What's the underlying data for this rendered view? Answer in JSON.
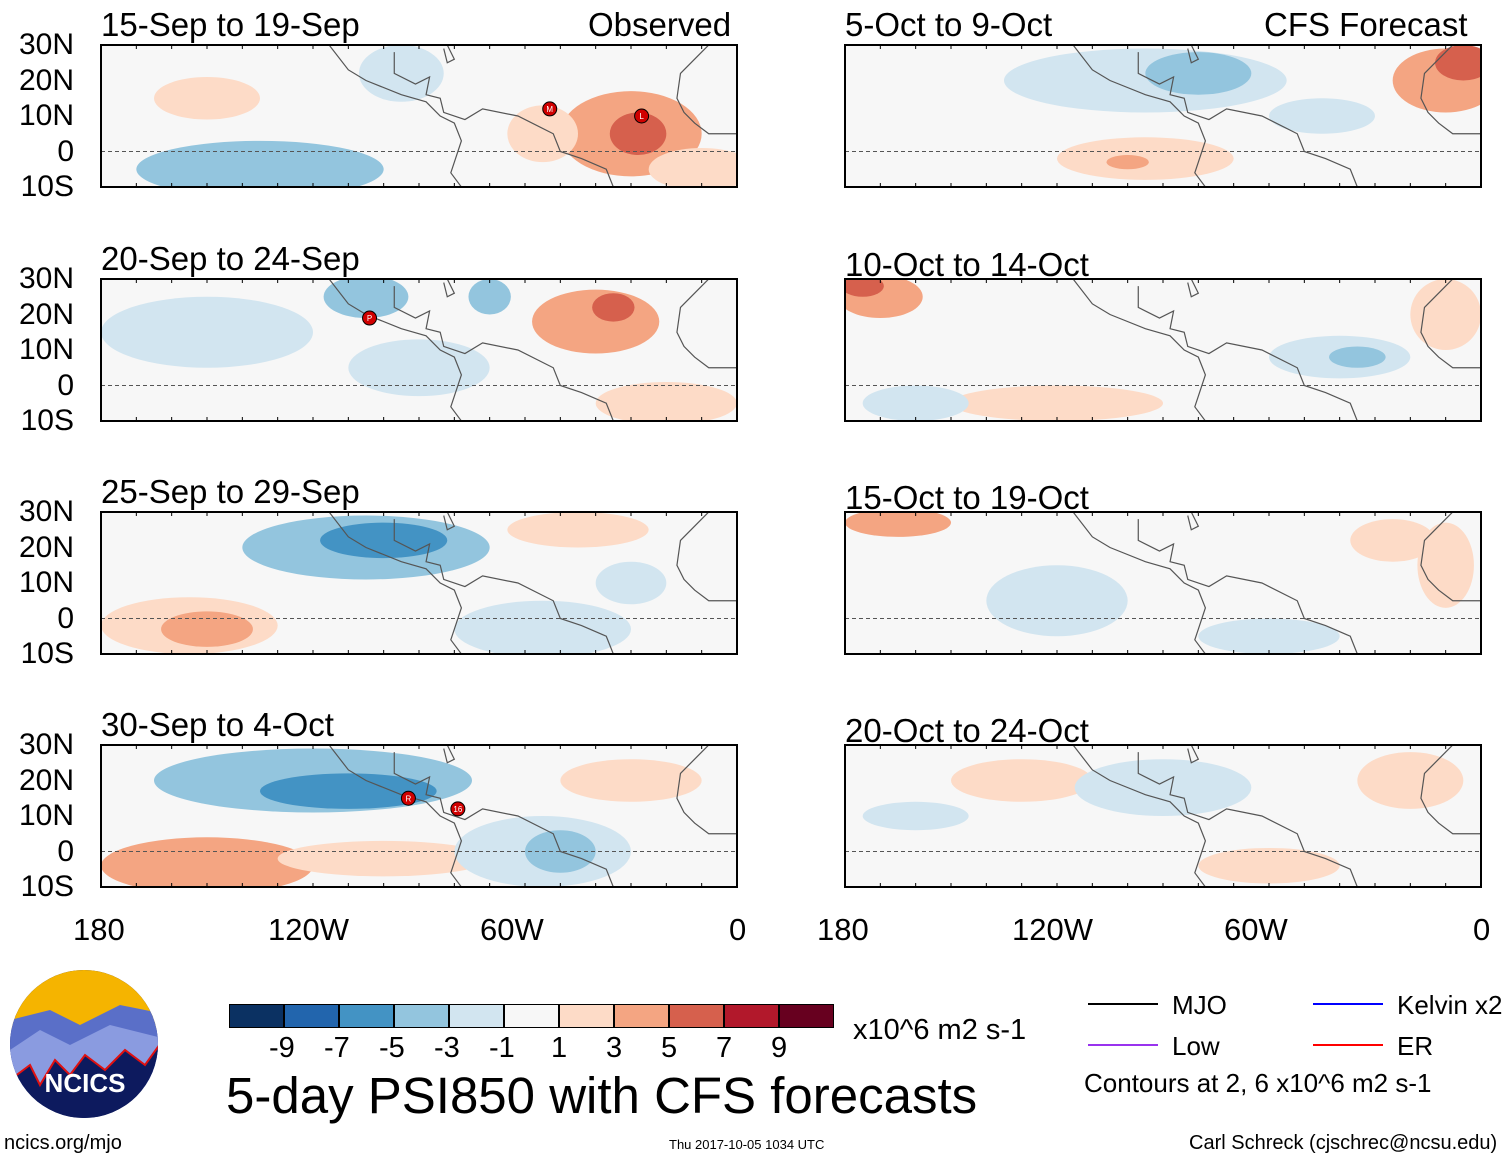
{
  "figure_title": "5-day PSI850 with CFS forecasts",
  "column_labels": {
    "left": "Observed",
    "right": "CFS Forecast"
  },
  "lat_labels": [
    "30N",
    "20N",
    "10N",
    "0",
    "10S"
  ],
  "lon_labels": [
    "180",
    "120W",
    "60W",
    "0"
  ],
  "panels": [
    {
      "title": "15-Sep to 19-Sep",
      "column": "left",
      "blobs": [
        {
          "lon": -135,
          "lat": -5,
          "rlon": 35,
          "rlat": 8,
          "level": -3
        },
        {
          "lon": -95,
          "lat": 22,
          "rlon": 12,
          "rlat": 8,
          "level": -1
        },
        {
          "lon": -30,
          "lat": 5,
          "rlon": 20,
          "rlat": 12,
          "level": 3
        },
        {
          "lon": -28,
          "lat": 5,
          "rlon": 8,
          "rlat": 6,
          "level": 5
        },
        {
          "lon": -150,
          "lat": 15,
          "rlon": 15,
          "rlat": 6,
          "level": 1
        },
        {
          "lon": -10,
          "lat": -5,
          "rlon": 15,
          "rlat": 6,
          "level": 1
        },
        {
          "lon": -55,
          "lat": 5,
          "rlon": 10,
          "rlat": 8,
          "level": 1
        }
      ],
      "storms": [
        {
          "lon": -53,
          "lat": 12,
          "label": "M"
        },
        {
          "lon": -27,
          "lat": 10,
          "label": "L"
        }
      ]
    },
    {
      "title": "20-Sep to 24-Sep",
      "column": "left",
      "blobs": [
        {
          "lon": -150,
          "lat": 15,
          "rlon": 30,
          "rlat": 10,
          "level": -1
        },
        {
          "lon": -105,
          "lat": 25,
          "rlon": 12,
          "rlat": 6,
          "level": -3
        },
        {
          "lon": -70,
          "lat": 25,
          "rlon": 6,
          "rlat": 5,
          "level": -3
        },
        {
          "lon": -40,
          "lat": 18,
          "rlon": 18,
          "rlat": 9,
          "level": 3
        },
        {
          "lon": -35,
          "lat": 22,
          "rlon": 6,
          "rlat": 4,
          "level": 5
        },
        {
          "lon": -90,
          "lat": 5,
          "rlon": 20,
          "rlat": 8,
          "level": -1
        },
        {
          "lon": -20,
          "lat": -5,
          "rlon": 20,
          "rlat": 6,
          "level": 1
        }
      ],
      "storms": [
        {
          "lon": -104,
          "lat": 19,
          "label": "P"
        }
      ]
    },
    {
      "title": "25-Sep to 29-Sep",
      "column": "left",
      "blobs": [
        {
          "lon": -105,
          "lat": 20,
          "rlon": 35,
          "rlat": 9,
          "level": -3
        },
        {
          "lon": -100,
          "lat": 22,
          "rlon": 18,
          "rlat": 5,
          "level": -5
        },
        {
          "lon": -155,
          "lat": -2,
          "rlon": 25,
          "rlat": 8,
          "level": 1
        },
        {
          "lon": -150,
          "lat": -3,
          "rlon": 13,
          "rlat": 5,
          "level": 3
        },
        {
          "lon": -55,
          "lat": -3,
          "rlon": 25,
          "rlat": 8,
          "level": -1
        },
        {
          "lon": -45,
          "lat": 25,
          "rlon": 20,
          "rlat": 5,
          "level": 1
        },
        {
          "lon": -30,
          "lat": 10,
          "rlon": 10,
          "rlat": 6,
          "level": -1
        }
      ],
      "storms": []
    },
    {
      "title": "30-Sep to 4-Oct",
      "column": "left",
      "blobs": [
        {
          "lon": -120,
          "lat": 20,
          "rlon": 45,
          "rlat": 9,
          "level": -3
        },
        {
          "lon": -110,
          "lat": 17,
          "rlon": 25,
          "rlat": 5,
          "level": -5
        },
        {
          "lon": -150,
          "lat": -4,
          "rlon": 30,
          "rlat": 8,
          "level": 3
        },
        {
          "lon": -100,
          "lat": -2,
          "rlon": 30,
          "rlat": 5,
          "level": 1
        },
        {
          "lon": -55,
          "lat": 0,
          "rlon": 25,
          "rlat": 10,
          "level": -1
        },
        {
          "lon": -50,
          "lat": 0,
          "rlon": 10,
          "rlat": 6,
          "level": -3
        },
        {
          "lon": -30,
          "lat": 20,
          "rlon": 20,
          "rlat": 6,
          "level": 1
        }
      ],
      "storms": [
        {
          "lon": -93,
          "lat": 15,
          "label": "R"
        },
        {
          "lon": -79,
          "lat": 12,
          "label": "16"
        }
      ]
    },
    {
      "title": "5-Oct to 9-Oct",
      "column": "right",
      "blobs": [
        {
          "lon": -95,
          "lat": 20,
          "rlon": 40,
          "rlat": 9,
          "level": -1
        },
        {
          "lon": -80,
          "lat": 22,
          "rlon": 15,
          "rlat": 6,
          "level": -3
        },
        {
          "lon": -10,
          "lat": 20,
          "rlon": 15,
          "rlat": 9,
          "level": 3
        },
        {
          "lon": -5,
          "lat": 25,
          "rlon": 8,
          "rlat": 5,
          "level": 5
        },
        {
          "lon": -95,
          "lat": -2,
          "rlon": 25,
          "rlat": 6,
          "level": 1
        },
        {
          "lon": -100,
          "lat": -3,
          "rlon": 6,
          "rlat": 2,
          "level": 3
        },
        {
          "lon": -45,
          "lat": 10,
          "rlon": 15,
          "rlat": 5,
          "level": -1
        }
      ],
      "storms": []
    },
    {
      "title": "10-Oct to 14-Oct",
      "column": "right",
      "blobs": [
        {
          "lon": -170,
          "lat": 25,
          "rlon": 12,
          "rlat": 6,
          "level": 3
        },
        {
          "lon": -175,
          "lat": 28,
          "rlon": 6,
          "rlat": 3,
          "level": 5
        },
        {
          "lon": -40,
          "lat": 8,
          "rlon": 20,
          "rlat": 6,
          "level": -1
        },
        {
          "lon": -35,
          "lat": 8,
          "rlon": 8,
          "rlat": 3,
          "level": -3
        },
        {
          "lon": -10,
          "lat": 20,
          "rlon": 10,
          "rlat": 10,
          "level": 1
        },
        {
          "lon": -120,
          "lat": -5,
          "rlon": 30,
          "rlat": 5,
          "level": 1
        },
        {
          "lon": -160,
          "lat": -5,
          "rlon": 15,
          "rlat": 5,
          "level": -1
        }
      ],
      "storms": []
    },
    {
      "title": "15-Oct to 19-Oct",
      "column": "right",
      "blobs": [
        {
          "lon": -165,
          "lat": 27,
          "rlon": 15,
          "rlat": 4,
          "level": 3
        },
        {
          "lon": -120,
          "lat": 5,
          "rlon": 20,
          "rlat": 10,
          "level": -1
        },
        {
          "lon": -60,
          "lat": -5,
          "rlon": 20,
          "rlat": 5,
          "level": -1
        },
        {
          "lon": -25,
          "lat": 22,
          "rlon": 12,
          "rlat": 6,
          "level": 1
        },
        {
          "lon": -10,
          "lat": 15,
          "rlon": 8,
          "rlat": 12,
          "level": 1
        }
      ],
      "storms": []
    },
    {
      "title": "20-Oct to 24-Oct",
      "column": "right",
      "blobs": [
        {
          "lon": -130,
          "lat": 20,
          "rlon": 20,
          "rlat": 6,
          "level": 1
        },
        {
          "lon": -90,
          "lat": 18,
          "rlon": 25,
          "rlat": 8,
          "level": -1
        },
        {
          "lon": -20,
          "lat": 20,
          "rlon": 15,
          "rlat": 8,
          "level": 1
        },
        {
          "lon": -60,
          "lat": -4,
          "rlon": 20,
          "rlat": 5,
          "level": 1
        },
        {
          "lon": -160,
          "lat": 10,
          "rlon": 15,
          "rlat": 4,
          "level": -1
        }
      ],
      "storms": []
    }
  ],
  "colorbar": {
    "labels": [
      "-9",
      "-7",
      "-5",
      "-3",
      "-1",
      "1",
      "3",
      "5",
      "7",
      "9"
    ],
    "colors": [
      "#0b3162",
      "#2265ad",
      "#4393c4",
      "#93c5de",
      "#d2e5f0",
      "#f7f7f7",
      "#fddbc7",
      "#f4a582",
      "#d6604d",
      "#b2182b",
      "#67001f"
    ],
    "units": "x10^6 m2 s-1"
  },
  "legend": {
    "items": [
      {
        "label": "MJO",
        "color": "#000000"
      },
      {
        "label": "Kelvin x2",
        "color": "#0000ff"
      },
      {
        "label": "Low",
        "color": "#9933ee"
      },
      {
        "label": "ER",
        "color": "#ff0000"
      }
    ],
    "note": "Contours at 2, 6 x10^6 m2 s-1"
  },
  "logo_text": "NCICS",
  "footer": {
    "url": "ncics.org/mjo",
    "timestamp": "Thu 2017-10-05 1034 UTC",
    "credit": "Carl Schreck (cjschrec@ncsu.edu)"
  }
}
